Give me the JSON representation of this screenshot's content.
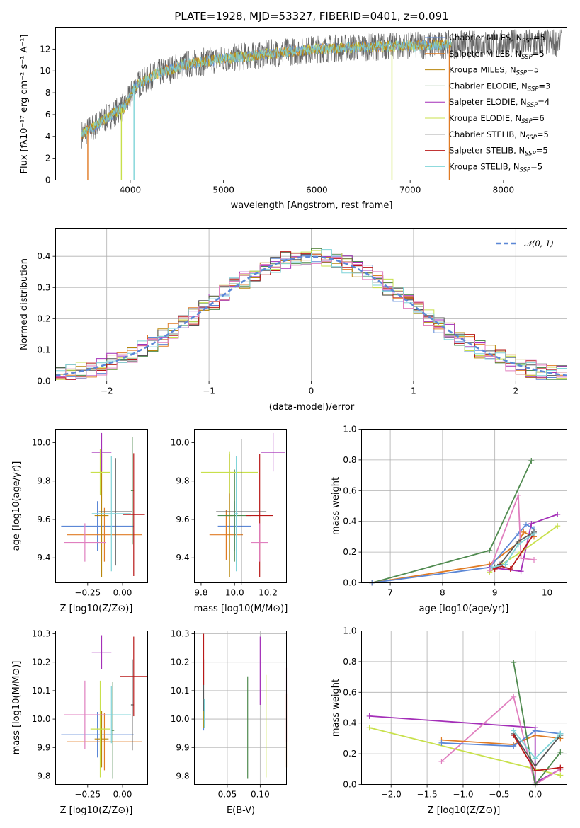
{
  "page": {
    "title": "PLATE=1928, MJD=53327, FIBERID=0401, z=0.091"
  },
  "colors": {
    "Chabrier MILES": "#5b87d6",
    "Salpeter MILES": "#e07b24",
    "Kroupa MILES": "#b8860b",
    "Chabrier ELODIE": "#4f8a4f",
    "Salpeter ELODIE": "#a42fb8",
    "Kroupa ELODIE": "#c8e04b",
    "Chabrier STELIB": "#555555",
    "Salpeter STELIB": "#b81818",
    "Kroupa STELIB": "#7fd4d8",
    "pink": "#e07fbf"
  },
  "chart_data": [
    {
      "id": "spectrum",
      "type": "line",
      "xlabel": "wavelength [Angstrom, rest frame]",
      "ylabel": "Flux [fλ10⁻¹⁷ erg cm⁻² s⁻¹ A⁻¹]",
      "xlim": [
        3200,
        8680
      ],
      "ylim": [
        0,
        14
      ],
      "xticks": [
        "4000",
        "5000",
        "6000",
        "7000",
        "8000"
      ],
      "yticks": [
        "0",
        "2",
        "4",
        "6",
        "8",
        "10",
        "12"
      ],
      "legend": [
        {
          "name": "Chabrier MILES",
          "nssp": "5"
        },
        {
          "name": "Salpeter MILES",
          "nssp": "5"
        },
        {
          "name": "Kroupa MILES",
          "nssp": "5"
        },
        {
          "name": "Chabrier ELODIE",
          "nssp": "3"
        },
        {
          "name": "Salpeter ELODIE",
          "nssp": "4"
        },
        {
          "name": "Kroupa ELODIE",
          "nssp": "6"
        },
        {
          "name": "Chabrier STELIB",
          "nssp": "5"
        },
        {
          "name": "Salpeter STELIB",
          "nssp": "5"
        },
        {
          "name": "Kroupa STELIB",
          "nssp": "5"
        }
      ],
      "legend_sub": "SSP",
      "legend_prefix": "N",
      "continuum": {
        "x": [
          3480,
          3600,
          3800,
          3950,
          4050,
          4300,
          4600,
          5000,
          5500,
          6000,
          6500,
          7000,
          7500,
          8000,
          8400
        ],
        "y": [
          4.2,
          4.8,
          6.0,
          6.8,
          8.6,
          9.8,
          10.6,
          11.1,
          11.6,
          12.0,
          12.2,
          12.3,
          12.4,
          12.5,
          12.6
        ]
      }
    },
    {
      "id": "residual-histogram",
      "type": "bar",
      "xlabel": "(data-model)/error",
      "ylabel": "Normed distribution",
      "xlim": [
        -2.5,
        2.5
      ],
      "ylim": [
        0,
        0.49
      ],
      "xticks": [
        "−2",
        "−1",
        "0",
        "1",
        "2"
      ],
      "yticks": [
        "0.0",
        "0.1",
        "0.2",
        "0.3",
        "0.4"
      ],
      "legend": "𝒩(0, 1)",
      "bin_width": 0.1
    },
    {
      "id": "age-vs-Z",
      "type": "scatter",
      "xlabel": "Z [log10(Z/Z⊙)]",
      "ylabel": "age  [log10(age/yr)]",
      "xlim": [
        -0.48,
        0.18
      ],
      "ylim": [
        9.27,
        10.07
      ],
      "xticks": [
        "−0.25",
        "0.00"
      ],
      "yticks": [
        "9.4",
        "9.6",
        "9.8",
        "10.0"
      ],
      "points": [
        {
          "series": "Chabrier MILES",
          "x": -0.18,
          "xerr": 0.26,
          "y": 9.565,
          "yerr": 0.13
        },
        {
          "series": "Salpeter MILES",
          "x": -0.13,
          "xerr": 0.27,
          "y": 9.52,
          "yerr": 0.14
        },
        {
          "series": "Kroupa MILES",
          "x": -0.15,
          "xerr": 0.05,
          "y": 9.62,
          "yerr": 0.32
        },
        {
          "series": "Chabrier ELODIE",
          "x": 0.07,
          "xerr": 0.01,
          "y": 9.75,
          "yerr": 0.28
        },
        {
          "series": "Salpeter ELODIE",
          "x": -0.15,
          "xerr": 0.07,
          "y": 9.95,
          "yerr": 0.1
        },
        {
          "series": "Kroupa ELODIE",
          "x": -0.16,
          "xerr": 0.07,
          "y": 9.845,
          "yerr": 0.12
        },
        {
          "series": "Chabrier STELIB",
          "x": -0.05,
          "xerr": 0.12,
          "y": 9.64,
          "yerr": 0.28
        },
        {
          "series": "Salpeter STELIB",
          "x": 0.08,
          "xerr": 0.08,
          "y": 9.625,
          "yerr": 0.32
        },
        {
          "series": "Kroupa STELIB",
          "x": -0.08,
          "xerr": 0.14,
          "y": 9.63,
          "yerr": 0.3
        },
        {
          "series": "pink",
          "x": -0.27,
          "xerr": 0.15,
          "y": 9.48,
          "yerr": 0.1
        }
      ]
    },
    {
      "id": "age-vs-mass",
      "type": "scatter",
      "xlabel": "mass [log10(M/M⊙)]",
      "ylabel": "",
      "xlim": [
        9.76,
        10.31
      ],
      "ylim": [
        9.27,
        10.07
      ],
      "xticks": [
        "9.8",
        "10.0",
        "10.2"
      ],
      "yticks": [
        "9.4",
        "9.6",
        "9.8",
        "10.0"
      ],
      "points": [
        {
          "series": "Chabrier MILES",
          "x": 10.0,
          "xerr": 0.1,
          "y": 9.565,
          "yerr": 0.13
        },
        {
          "series": "Salpeter MILES",
          "x": 9.95,
          "xerr": 0.1,
          "y": 9.52,
          "yerr": 0.13
        },
        {
          "series": "Kroupa MILES",
          "x": 9.97,
          "xerr": 0.02,
          "y": 9.62,
          "yerr": 0.32
        },
        {
          "series": "Chabrier ELODIE",
          "x": 10.0,
          "xerr": 0.1,
          "y": 9.62,
          "yerr": 0.24
        },
        {
          "series": "Salpeter ELODIE",
          "x": 10.23,
          "xerr": 0.07,
          "y": 9.95,
          "yerr": 0.1
        },
        {
          "series": "Kroupa ELODIE",
          "x": 9.97,
          "xerr": 0.17,
          "y": 9.845,
          "yerr": 0.11
        },
        {
          "series": "Chabrier STELIB",
          "x": 10.04,
          "xerr": 0.15,
          "y": 9.64,
          "yerr": 0.38
        },
        {
          "series": "Salpeter STELIB",
          "x": 10.15,
          "xerr": 0.08,
          "y": 9.62,
          "yerr": 0.32
        },
        {
          "series": "Kroupa STELIB",
          "x": 10.01,
          "xerr": 0.01,
          "y": 9.63,
          "yerr": 0.3
        },
        {
          "series": "pink",
          "x": 10.15,
          "xerr": 0.05,
          "y": 9.48,
          "yerr": 0.1
        }
      ]
    },
    {
      "id": "mass-weight-vs-age",
      "type": "line",
      "xlabel": "age  [log10(age/yr)]",
      "ylabel": "mass weight",
      "xlim": [
        6.45,
        10.38
      ],
      "ylim": [
        0,
        1
      ],
      "xticks": [
        "7",
        "8",
        "9",
        "10"
      ],
      "yticks": [
        "0.0",
        "0.2",
        "0.4",
        "0.6",
        "0.8",
        "1.0"
      ],
      "series": [
        {
          "name": "Chabrier ELODIE",
          "x": [
            6.65,
            8.9,
            9.7
          ],
          "y": [
            0.0,
            0.21,
            0.795
          ]
        },
        {
          "name": "Salpeter MILES",
          "x": [
            6.65,
            8.9,
            9.45,
            9.55,
            9.75
          ],
          "y": [
            0.0,
            0.12,
            0.26,
            0.33,
            0.3
          ]
        },
        {
          "name": "Chabrier MILES",
          "x": [
            6.65,
            8.9,
            9.45,
            9.6,
            9.75
          ],
          "y": [
            0.0,
            0.1,
            0.32,
            0.38,
            0.35
          ]
        },
        {
          "name": "Salpeter ELODIE",
          "x": [
            8.9,
            9.5,
            9.7,
            10.2
          ],
          "y": [
            0.1,
            0.075,
            0.385,
            0.445
          ]
        },
        {
          "name": "Kroupa ELODIE",
          "x": [
            8.9,
            9.5,
            10.2
          ],
          "y": [
            0.07,
            0.2,
            0.37
          ]
        },
        {
          "name": "pink",
          "x": [
            8.9,
            9.45,
            9.5,
            9.75
          ],
          "y": [
            0.08,
            0.57,
            0.16,
            0.15
          ]
        },
        {
          "name": "Chabrier STELIB",
          "x": [
            9.0,
            9.1,
            9.45,
            9.75
          ],
          "y": [
            0.1,
            0.12,
            0.27,
            0.33
          ]
        },
        {
          "name": "Salpeter STELIB",
          "x": [
            9.0,
            9.1,
            9.3,
            9.75
          ],
          "y": [
            0.09,
            0.11,
            0.09,
            0.32
          ]
        },
        {
          "name": "Kroupa STELIB",
          "x": [
            8.95,
            9.2,
            9.45,
            9.75
          ],
          "y": [
            0.1,
            0.12,
            0.25,
            0.32
          ]
        }
      ]
    },
    {
      "id": "mass-vs-Z",
      "type": "scatter",
      "xlabel": "Z [log10(Z/Z⊙)]",
      "ylabel": "mass [log10(M/M⊙)]",
      "xlim": [
        -0.48,
        0.18
      ],
      "ylim": [
        9.77,
        10.31
      ],
      "xticks": [
        "−0.25",
        "0.00"
      ],
      "yticks": [
        "9.8",
        "9.9",
        "10.0",
        "10.1",
        "10.2",
        "10.3"
      ],
      "points": [
        {
          "series": "Chabrier MILES",
          "x": -0.18,
          "xerr": 0.26,
          "y": 9.945,
          "yerr": 0.08
        },
        {
          "series": "Salpeter MILES",
          "x": -0.13,
          "xerr": 0.27,
          "y": 9.92,
          "yerr": 0.1
        },
        {
          "series": "Kroupa MILES",
          "x": -0.15,
          "xerr": 0.05,
          "y": 9.93,
          "yerr": 0.1
        },
        {
          "series": "Chabrier ELODIE",
          "x": -0.07,
          "xerr": 0.01,
          "y": 9.96,
          "yerr": 0.17
        },
        {
          "series": "Salpeter ELODIE",
          "x": -0.15,
          "xerr": 0.07,
          "y": 10.235,
          "yerr": 0.06
        },
        {
          "series": "Kroupa ELODIE",
          "x": -0.16,
          "xerr": 0.07,
          "y": 9.965,
          "yerr": 0.17
        },
        {
          "series": "Chabrier STELIB",
          "x": 0.07,
          "xerr": 0.01,
          "y": 10.05,
          "yerr": 0.16
        },
        {
          "series": "Salpeter STELIB",
          "x": 0.08,
          "xerr": 0.1,
          "y": 10.15,
          "yerr": 0.14
        },
        {
          "series": "Kroupa STELIB",
          "x": -0.08,
          "xerr": 0.14,
          "y": 10.015,
          "yerr": 0.1
        },
        {
          "series": "pink",
          "x": -0.27,
          "xerr": 0.15,
          "y": 10.015,
          "yerr": 0.12
        }
      ]
    },
    {
      "id": "mass-vs-EBV",
      "type": "scatter",
      "xlabel": "E(B-V)",
      "ylabel": "",
      "xlim": [
        0.0,
        0.14
      ],
      "ylim": [
        9.77,
        10.31
      ],
      "xticks": [
        "0.05",
        "0.10"
      ],
      "yticks": [
        "9.8",
        "9.9",
        "10.0",
        "10.1",
        "10.2",
        "10.3"
      ],
      "points": [
        {
          "series": "Chabrier MILES",
          "x": 0.014,
          "y": 9.98,
          "yerr": 0.02
        },
        {
          "series": "Salpeter MILES",
          "x": 0.14,
          "y": 9.96,
          "yerr": 0.13
        },
        {
          "series": "Kroupa MILES",
          "x": 0.014,
          "y": 10.0,
          "yerr": 0.03
        },
        {
          "series": "Chabrier ELODIE",
          "x": 0.081,
          "y": 9.97,
          "yerr": 0.18
        },
        {
          "series": "Salpeter ELODIE",
          "x": 0.1,
          "y": 10.17,
          "yerr": 0.12
        },
        {
          "series": "Kroupa ELODIE",
          "x": 0.109,
          "y": 9.975,
          "yerr": 0.18
        },
        {
          "series": "Chabrier STELIB",
          "x": 0.014,
          "y": 10.12,
          "yerr": 0.09
        },
        {
          "series": "Salpeter STELIB",
          "x": 0.014,
          "y": 10.21,
          "yerr": 0.09
        },
        {
          "series": "Kroupa STELIB",
          "x": 0.015,
          "y": 10.02,
          "yerr": 0.05
        },
        {
          "series": "pink",
          "x": 0.14,
          "y": 10.05,
          "yerr": 0.13
        }
      ]
    },
    {
      "id": "mass-weight-vs-Z",
      "type": "line",
      "xlabel": "Z [log10(Z/Z⊙)]",
      "ylabel": "mass weight",
      "xlim": [
        -2.41,
        0.44
      ],
      "ylim": [
        0,
        1
      ],
      "xticks": [
        "−2.0",
        "−1.5",
        "−1.0",
        "−0.5",
        "0.0"
      ],
      "yticks": [
        "0.0",
        "0.2",
        "0.4",
        "0.6",
        "0.8",
        "1.0"
      ],
      "series": [
        {
          "name": "Salpeter ELODIE",
          "x": [
            -2.3,
            0.0,
            0.0,
            0.35
          ],
          "y": [
            0.445,
            0.37,
            0.01,
            0.1
          ]
        },
        {
          "name": "Kroupa ELODIE",
          "x": [
            -2.3,
            0.0,
            0.35
          ],
          "y": [
            0.37,
            0.1,
            0.06
          ]
        },
        {
          "name": "pink",
          "x": [
            -1.3,
            -0.3,
            0.0,
            0.35
          ],
          "y": [
            0.15,
            0.57,
            0.0,
            0.1
          ]
        },
        {
          "name": "Salpeter MILES",
          "x": [
            -1.3,
            -0.3,
            0.0,
            0.35
          ],
          "y": [
            0.29,
            0.26,
            0.32,
            0.3
          ]
        },
        {
          "name": "Chabrier MILES",
          "x": [
            -1.3,
            -0.3,
            0.0,
            0.35
          ],
          "y": [
            0.27,
            0.25,
            0.35,
            0.33
          ]
        },
        {
          "name": "Chabrier ELODIE",
          "x": [
            -0.3,
            0.0,
            0.35
          ],
          "y": [
            0.795,
            0.0,
            0.21
          ]
        },
        {
          "name": "Chabrier STELIB",
          "x": [
            -0.3,
            0.0,
            0.35
          ],
          "y": [
            0.33,
            0.12,
            0.32
          ]
        },
        {
          "name": "Salpeter STELIB",
          "x": [
            -0.3,
            0.0,
            0.35
          ],
          "y": [
            0.32,
            0.09,
            0.11
          ]
        },
        {
          "name": "Kroupa STELIB",
          "x": [
            -0.3,
            0.0,
            0.35
          ],
          "y": [
            0.35,
            0.17,
            0.33
          ]
        }
      ]
    }
  ]
}
